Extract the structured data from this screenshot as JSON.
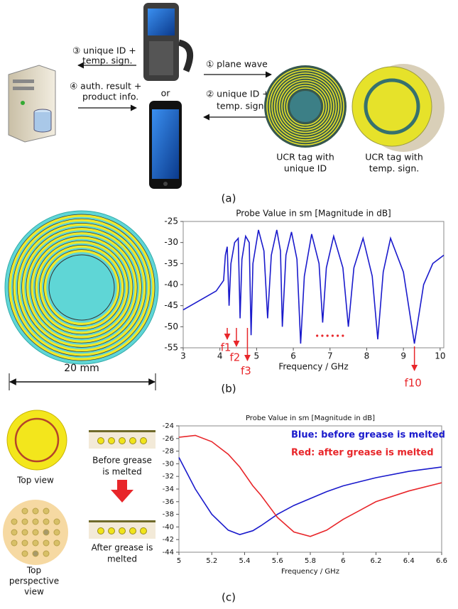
{
  "chart_data": [
    {
      "type": "line",
      "title": "Probe Value in sm [Magnitude in dB]",
      "x_label": "Frequency / GHz",
      "x": [
        3,
        3.3,
        3.6,
        3.9,
        4.1,
        4.15,
        4.2,
        4.25,
        4.3,
        4.4,
        4.5,
        4.55,
        4.6,
        4.7,
        4.8,
        4.85,
        4.9,
        5.05,
        5.2,
        5.3,
        5.4,
        5.55,
        5.65,
        5.7,
        5.8,
        5.95,
        6.1,
        6.2,
        6.3,
        6.5,
        6.7,
        6.8,
        6.9,
        7.1,
        7.35,
        7.5,
        7.65,
        7.9,
        8.15,
        8.3,
        8.45,
        8.65,
        9.0,
        9.3,
        9.55,
        9.8,
        10.1
      ],
      "series": [
        {
          "color": "#1a1acc",
          "values": [
            -46,
            -44.5,
            -43,
            -41.5,
            -39,
            -33,
            -31,
            -45,
            -35,
            -30,
            -29,
            -48,
            -34,
            -28.5,
            -30,
            -52,
            -35,
            -27,
            -32,
            -48,
            -33,
            -27,
            -32,
            -50,
            -33,
            -27.5,
            -34,
            -54,
            -38,
            -28,
            -35,
            -49,
            -36,
            -28.5,
            -36,
            -50,
            -36,
            -29,
            -38,
            -53,
            -37,
            -29,
            -37,
            -54,
            -40,
            -35,
            -33
          ]
        }
      ],
      "xlim": [
        3,
        10.1
      ],
      "xticks": [
        3,
        4,
        5,
        6,
        7,
        8,
        9,
        10
      ],
      "ylim": [
        -55,
        -25
      ],
      "yticks": [
        -55,
        -50,
        -45,
        -40,
        -35,
        -30,
        -25
      ],
      "grid": false,
      "annotations": [
        "f1",
        "f2",
        "f3",
        "f10"
      ]
    },
    {
      "type": "line",
      "title": "Probe Value in sm [Magnitude in dB]",
      "x_label": "Frequency / GHz",
      "x": [
        5,
        5.1,
        5.2,
        5.3,
        5.37,
        5.45,
        5.5,
        5.6,
        5.7,
        5.8,
        5.9,
        6,
        6.2,
        6.4,
        6.6
      ],
      "series": [
        {
          "name": "Blue: before grease is melted",
          "color": "#1a1acc",
          "values": [
            -29,
            -34,
            -38,
            -40.5,
            -41.2,
            -40.6,
            -39.8,
            -38,
            -36.6,
            -35.5,
            -34.4,
            -33.5,
            -32.2,
            -31.2,
            -30.5
          ]
        },
        {
          "name": "Red: after grease is melted",
          "color": "#e8262a",
          "values": [
            -25.8,
            -25.5,
            -26.5,
            -28.5,
            -30.5,
            -33.5,
            -35,
            -38.5,
            -40.8,
            -41.5,
            -40.5,
            -38.8,
            -36,
            -34.3,
            -33
          ]
        }
      ],
      "xlim": [
        5,
        6.6
      ],
      "xticks": [
        5,
        5.2,
        5.4,
        5.6,
        5.8,
        6,
        6.2,
        6.4,
        6.6
      ],
      "ylim": [
        -44,
        -24
      ],
      "yticks": [
        -44,
        -42,
        -40,
        -38,
        -36,
        -34,
        -32,
        -30,
        -28,
        -26,
        -24
      ],
      "grid": false
    }
  ],
  "panel_a": {
    "msg3": [
      "③ unique ID +",
      "temp. sign."
    ],
    "msg4": [
      "④ auth. result +",
      "product info."
    ],
    "msg1": "① plane wave",
    "msg2": [
      "② unique ID +",
      "temp. sign."
    ],
    "or": "or",
    "tag1": [
      "UCR tag with",
      "unique ID"
    ],
    "tag2": [
      "UCR tag with",
      "temp. sign."
    ],
    "caption": "(a)"
  },
  "panel_b": {
    "scale": "20 mm",
    "caption": "(b)"
  },
  "panel_c": {
    "top_view": "Top view",
    "before": [
      "Before grease",
      "is melted"
    ],
    "after": [
      "After grease is",
      "melted"
    ],
    "perspective": [
      "Top",
      "perspective",
      "view"
    ],
    "caption": "(c)"
  }
}
